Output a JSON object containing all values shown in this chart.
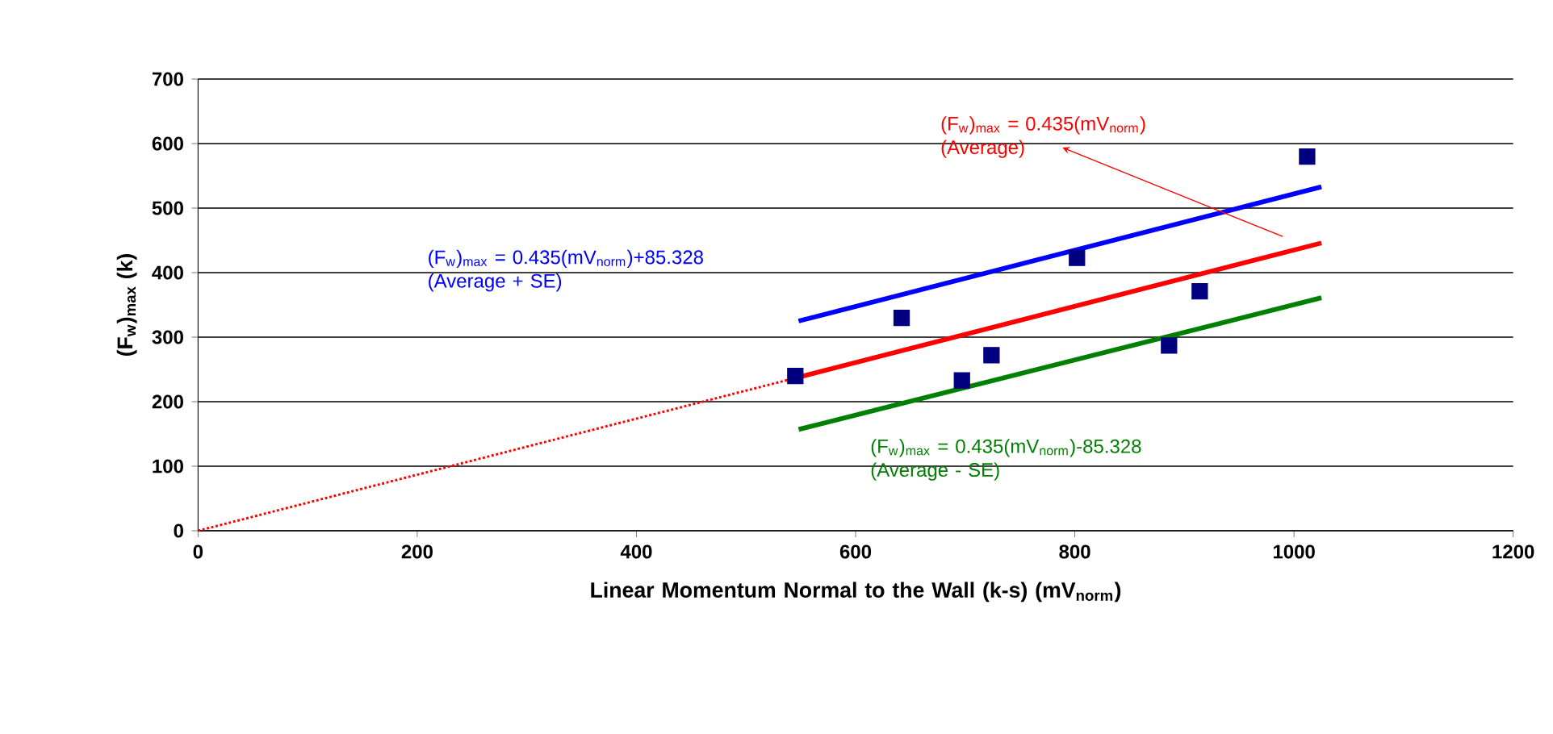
{
  "chart_data": {
    "type": "scatter",
    "xlabel": "Linear Momentum Normal to the Wall (k-s) (mV$_{norm}$)",
    "ylabel": "(F$_{w}$)$_{max}$  (k)",
    "xlim": [
      0,
      1200
    ],
    "xticks": [
      0,
      200,
      400,
      600,
      800,
      1000,
      1200
    ],
    "ylim": [
      0,
      700
    ],
    "yticks": [
      0,
      100,
      200,
      300,
      400,
      500,
      600,
      700
    ],
    "grid": "y",
    "series": [
      {
        "marker": "square",
        "color": "#000080",
        "x": [
          545,
          642,
          697,
          724,
          802,
          886,
          914,
          1012
        ],
        "values": [
          240,
          330,
          233,
          272,
          423,
          287,
          371,
          580
        ]
      },
      {
        "type": "line",
        "name": "(F$_{w}$)$_{max}$ = 0.435(mV$_{norm}$)+85.328 (Average + SE)",
        "color": "#0000ff",
        "line_style": "solid",
        "x": [
          548,
          1025
        ],
        "values": [
          325,
          533
        ]
      },
      {
        "type": "line",
        "name": "(F$_{w}$)$_{max}$ = 0.435(mV$_{norm}$) (Average)",
        "color": "#ff0000",
        "line_style": "solid",
        "x": [
          548,
          1025
        ],
        "values": [
          238,
          446
        ]
      },
      {
        "type": "line",
        "name": "(F$_{w}$)$_{max}$ = 0.435(mV$_{norm}$)-85.328 (Average - SE)",
        "color": "#008000",
        "line_style": "solid",
        "x": [
          548,
          1025
        ],
        "values": [
          157,
          361
        ]
      },
      {
        "type": "line",
        "color": "#ff0000",
        "line_style": "dotted",
        "x": [
          0,
          548
        ],
        "values": [
          0,
          238
        ]
      }
    ]
  }
}
